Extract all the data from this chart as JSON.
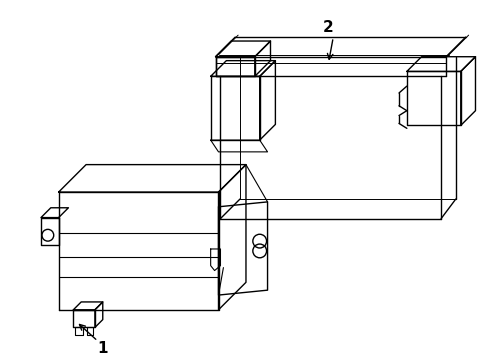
{
  "background_color": "#ffffff",
  "line_color": "#000000",
  "line_width": 1.0,
  "label_1": "1",
  "label_2": "2",
  "figsize": [
    4.89,
    3.6
  ],
  "dpi": 100
}
